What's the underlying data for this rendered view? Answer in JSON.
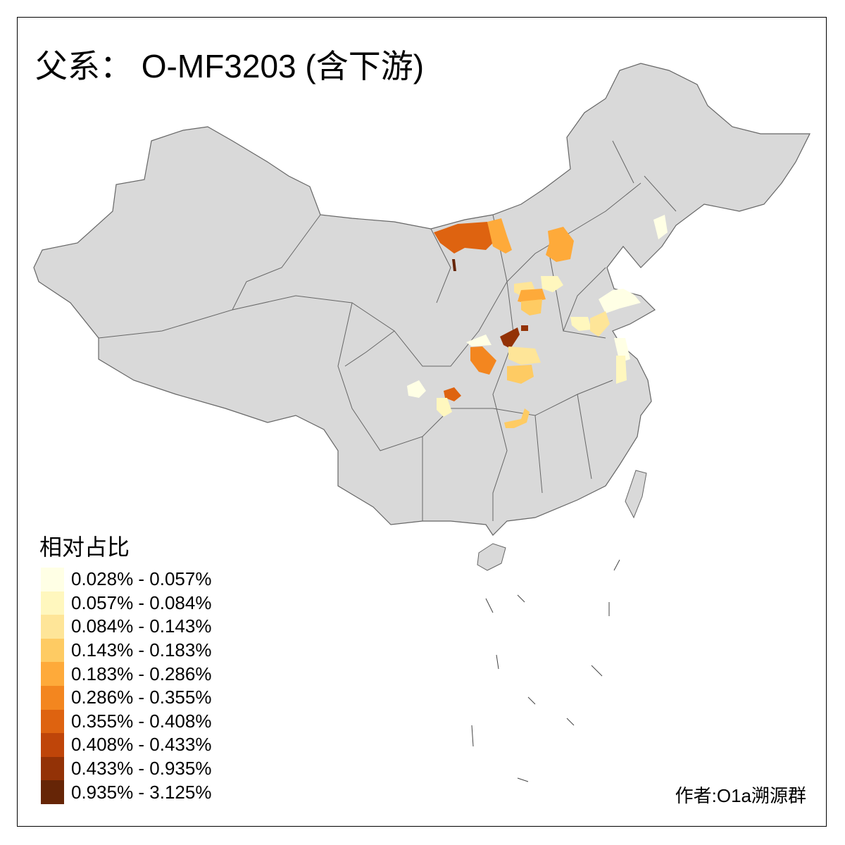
{
  "title": "父系： O-MF3203 (含下游)",
  "legend": {
    "title": "相对占比",
    "items": [
      {
        "label": "0.028% - 0.057%",
        "color": "#FFFFE5"
      },
      {
        "label": "0.057% - 0.084%",
        "color": "#FFF7BE"
      },
      {
        "label": "0.084% - 0.143%",
        "color": "#FEE598"
      },
      {
        "label": "0.143% - 0.183%",
        "color": "#FECB63"
      },
      {
        "label": "0.183% - 0.286%",
        "color": "#FEAA3A"
      },
      {
        "label": "0.286% - 0.355%",
        "color": "#F3861F"
      },
      {
        "label": "0.355% - 0.408%",
        "color": "#DE6310"
      },
      {
        "label": "0.408% - 0.433%",
        "color": "#BF4509"
      },
      {
        "label": "0.433% - 0.935%",
        "color": "#933206"
      },
      {
        "label": "0.935% - 3.125%",
        "color": "#662506"
      }
    ]
  },
  "map": {
    "base_color": "#D9D9D9",
    "border_color": "#666666"
  },
  "credit": "作者:O1a溯源群"
}
